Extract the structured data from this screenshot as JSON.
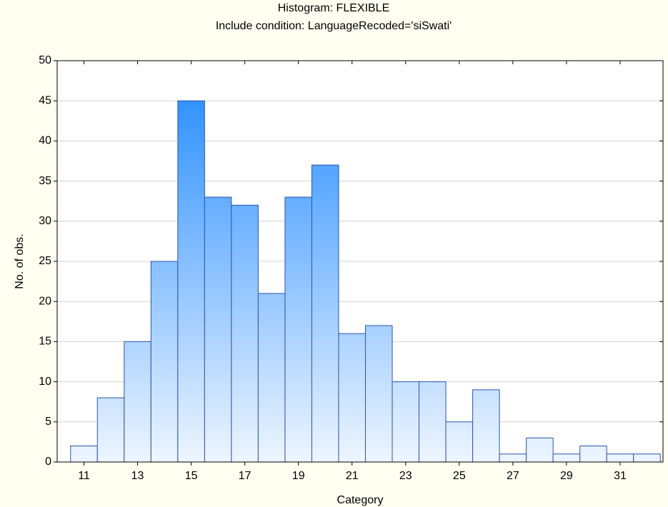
{
  "chart_data": {
    "type": "histogram",
    "title": "Histogram: FLEXIBLE",
    "subtitle": "Include condition: LanguageRecoded='siSwati'",
    "x_label": "Category",
    "y_label": "No. of obs.",
    "bins": [
      10.5,
      11.5,
      12.5,
      13.5,
      14.5,
      15.5,
      16.5,
      17.5,
      18.5,
      19.5,
      20.5,
      21.5,
      22.5,
      23.5,
      24.5,
      25.5,
      26.5,
      27.5,
      28.5,
      29.5,
      30.5,
      31.5,
      32.5
    ],
    "values": [
      2,
      8,
      15,
      25,
      45,
      33,
      32,
      21,
      33,
      37,
      16,
      17,
      10,
      10,
      5,
      9,
      1,
      3,
      1,
      2,
      1,
      1
    ],
    "color": "#1e88ff",
    "xlim": [
      10,
      32.6
    ],
    "xticks": [
      11,
      13,
      15,
      17,
      19,
      21,
      23,
      25,
      27,
      29,
      31
    ],
    "ylim": [
      0,
      50
    ],
    "yticks": [
      0,
      5,
      10,
      15,
      20,
      25,
      30,
      35,
      40,
      45,
      50
    ],
    "grid": true
  }
}
